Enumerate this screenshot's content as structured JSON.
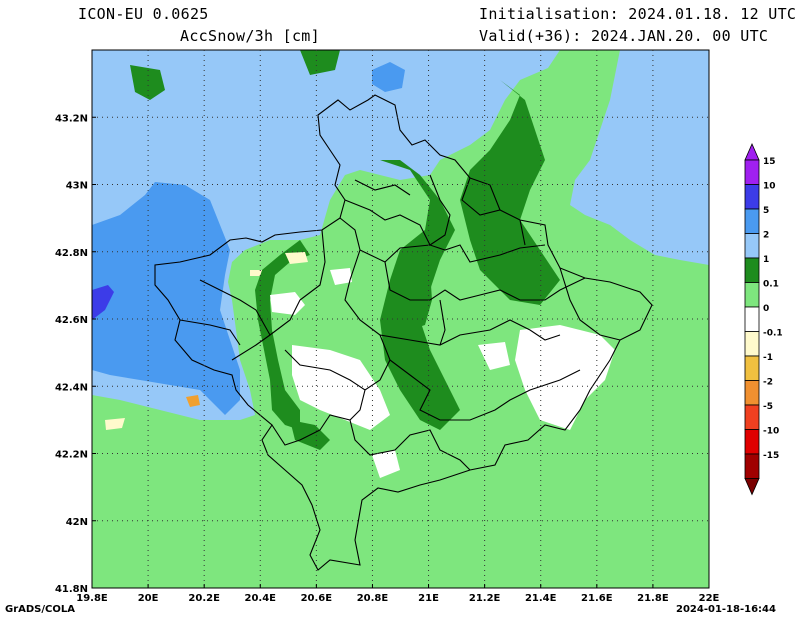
{
  "header": {
    "model": "ICON-EU 0.0625",
    "parameter": "AccSnow/3h [cm]",
    "initialisation": "Initialisation: 2024.01.18. 12 UTC",
    "valid": "Valid(+36): 2024.JAN.20. 00 UTC"
  },
  "footer": {
    "left": "GrADS/COLA",
    "right": "2024-01-18-16:44"
  },
  "map": {
    "lat_range": [
      41.8,
      43.4
    ],
    "lon_range": [
      19.8,
      22.0
    ],
    "lat_ticks": [
      {
        "value": 41.8,
        "label": "41.8N"
      },
      {
        "value": 42.0,
        "label": "42N"
      },
      {
        "value": 42.2,
        "label": "42.2N"
      },
      {
        "value": 42.4,
        "label": "42.4N"
      },
      {
        "value": 42.6,
        "label": "42.6N"
      },
      {
        "value": 42.8,
        "label": "42.8N"
      },
      {
        "value": 43.0,
        "label": "43N"
      },
      {
        "value": 43.2,
        "label": "43.2N"
      }
    ],
    "lon_ticks": [
      {
        "value": 19.8,
        "label": "19.8E"
      },
      {
        "value": 20.0,
        "label": "20E"
      },
      {
        "value": 20.2,
        "label": "20.2E"
      },
      {
        "value": 20.4,
        "label": "20.4E"
      },
      {
        "value": 20.6,
        "label": "20.6E"
      },
      {
        "value": 20.8,
        "label": "20.8E"
      },
      {
        "value": 21.0,
        "label": "21E"
      },
      {
        "value": 21.2,
        "label": "21.2E"
      },
      {
        "value": 21.4,
        "label": "21.4E"
      },
      {
        "value": 21.6,
        "label": "21.6E"
      },
      {
        "value": 21.8,
        "label": "21.8E"
      },
      {
        "value": 22.0,
        "label": "22E"
      }
    ],
    "grid": "dotted"
  },
  "colorbar": {
    "levels": [
      {
        "label": "15",
        "color": "#a020f0"
      },
      {
        "label": "10",
        "color": "#3c3ce8"
      },
      {
        "label": "5",
        "color": "#4a9af0"
      },
      {
        "label": "2",
        "color": "#96c8f8"
      },
      {
        "label": "1",
        "color": "#1e8c1e"
      },
      {
        "label": "0.1",
        "color": "#7ee67e"
      },
      {
        "label": "0",
        "color": "#ffffff"
      },
      {
        "label": "-0.1",
        "color": "#fffacc"
      },
      {
        "label": "-1",
        "color": "#f0c040"
      },
      {
        "label": "-2",
        "color": "#f09030"
      },
      {
        "label": "-5",
        "color": "#f04020"
      },
      {
        "label": "-10",
        "color": "#e00000"
      },
      {
        "label": "-15",
        "color": "#a00000"
      }
    ],
    "top_color": "#a020f0",
    "bottom_color": "#7a0000"
  },
  "colors": {
    "white": "#ffffff",
    "light_green": "#7ee67e",
    "dark_green": "#1e8c1e",
    "light_blue": "#96c8f8",
    "mid_blue": "#4a9af0",
    "dark_blue": "#3c3ce8",
    "pale_yellow": "#fffacc",
    "orange": "#f0a030"
  }
}
